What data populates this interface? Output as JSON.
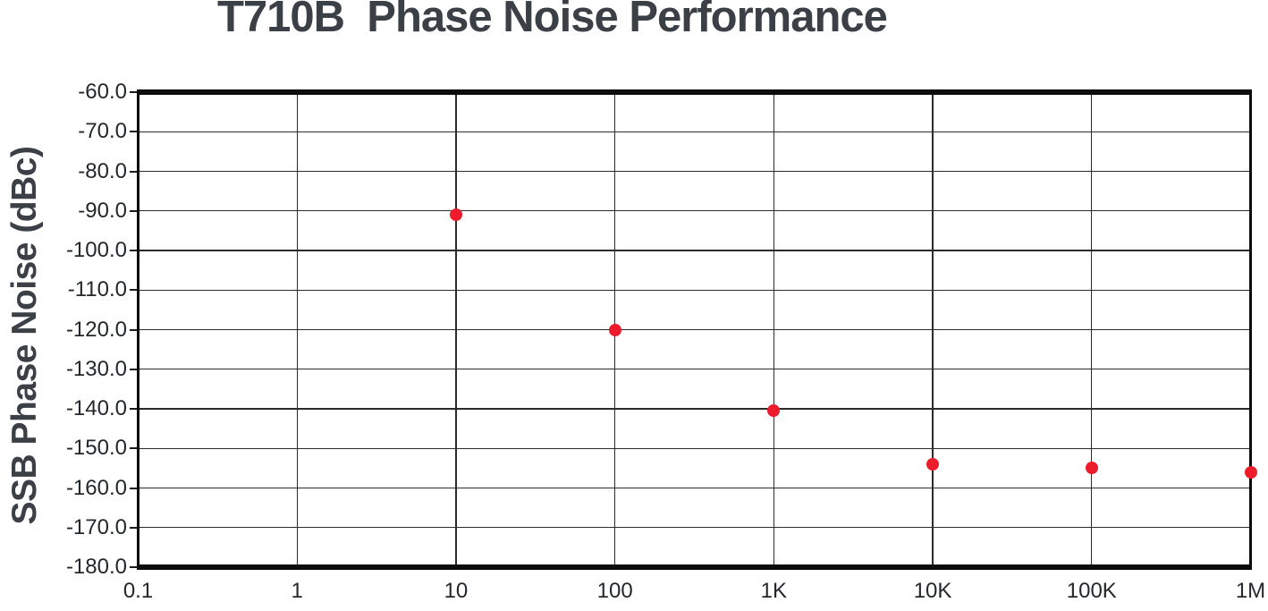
{
  "figure": {
    "title": "T710B  Phase Noise Performance",
    "colors": {
      "title_text": "#3b4046",
      "axis_tick_text": "#24272b",
      "grid_line": "#2b2b2b",
      "frame": "#0c0c0c",
      "background": "#ffffff",
      "point": "#ed1c2c"
    }
  },
  "chart_data": {
    "type": "scatter",
    "title": "T710B  Phase Noise Performance",
    "xlabel": "",
    "ylabel": "SSB Phase Noise (dBc)",
    "x_scale": "log",
    "y_scale": "linear",
    "xlim": [
      0.1,
      1000000
    ],
    "ylim": [
      -180,
      -60
    ],
    "grid": true,
    "legend": false,
    "x_ticks": [
      {
        "value": 0.1,
        "label": "0.1"
      },
      {
        "value": 1,
        "label": "1"
      },
      {
        "value": 10,
        "label": "10"
      },
      {
        "value": 100,
        "label": "100"
      },
      {
        "value": 1000,
        "label": "1K"
      },
      {
        "value": 10000,
        "label": "10K"
      },
      {
        "value": 100000,
        "label": "100K"
      },
      {
        "value": 1000000,
        "label": "1M"
      }
    ],
    "y_ticks": [
      {
        "value": -60,
        "label": "-60.0"
      },
      {
        "value": -70,
        "label": "-70.0"
      },
      {
        "value": -80,
        "label": "-80.0"
      },
      {
        "value": -90,
        "label": "-90.0"
      },
      {
        "value": -100,
        "label": "-100.0"
      },
      {
        "value": -110,
        "label": "-110.0"
      },
      {
        "value": -120,
        "label": "-120.0"
      },
      {
        "value": -130,
        "label": "-130.0"
      },
      {
        "value": -140,
        "label": "-140.0"
      },
      {
        "value": -150,
        "label": "-150.0"
      },
      {
        "value": -160,
        "label": "-160.0"
      },
      {
        "value": -170,
        "label": "-170.0"
      },
      {
        "value": -180,
        "label": "-180.0"
      }
    ],
    "series": [
      {
        "name": "SSB Phase Noise",
        "marker": "circle",
        "color": "#ed1c2c",
        "points": [
          {
            "x": 10,
            "y": -91
          },
          {
            "x": 100,
            "y": -120
          },
          {
            "x": 1000,
            "y": -140.5
          },
          {
            "x": 10000,
            "y": -154
          },
          {
            "x": 100000,
            "y": -155
          },
          {
            "x": 1000000,
            "y": -156
          }
        ]
      }
    ]
  }
}
